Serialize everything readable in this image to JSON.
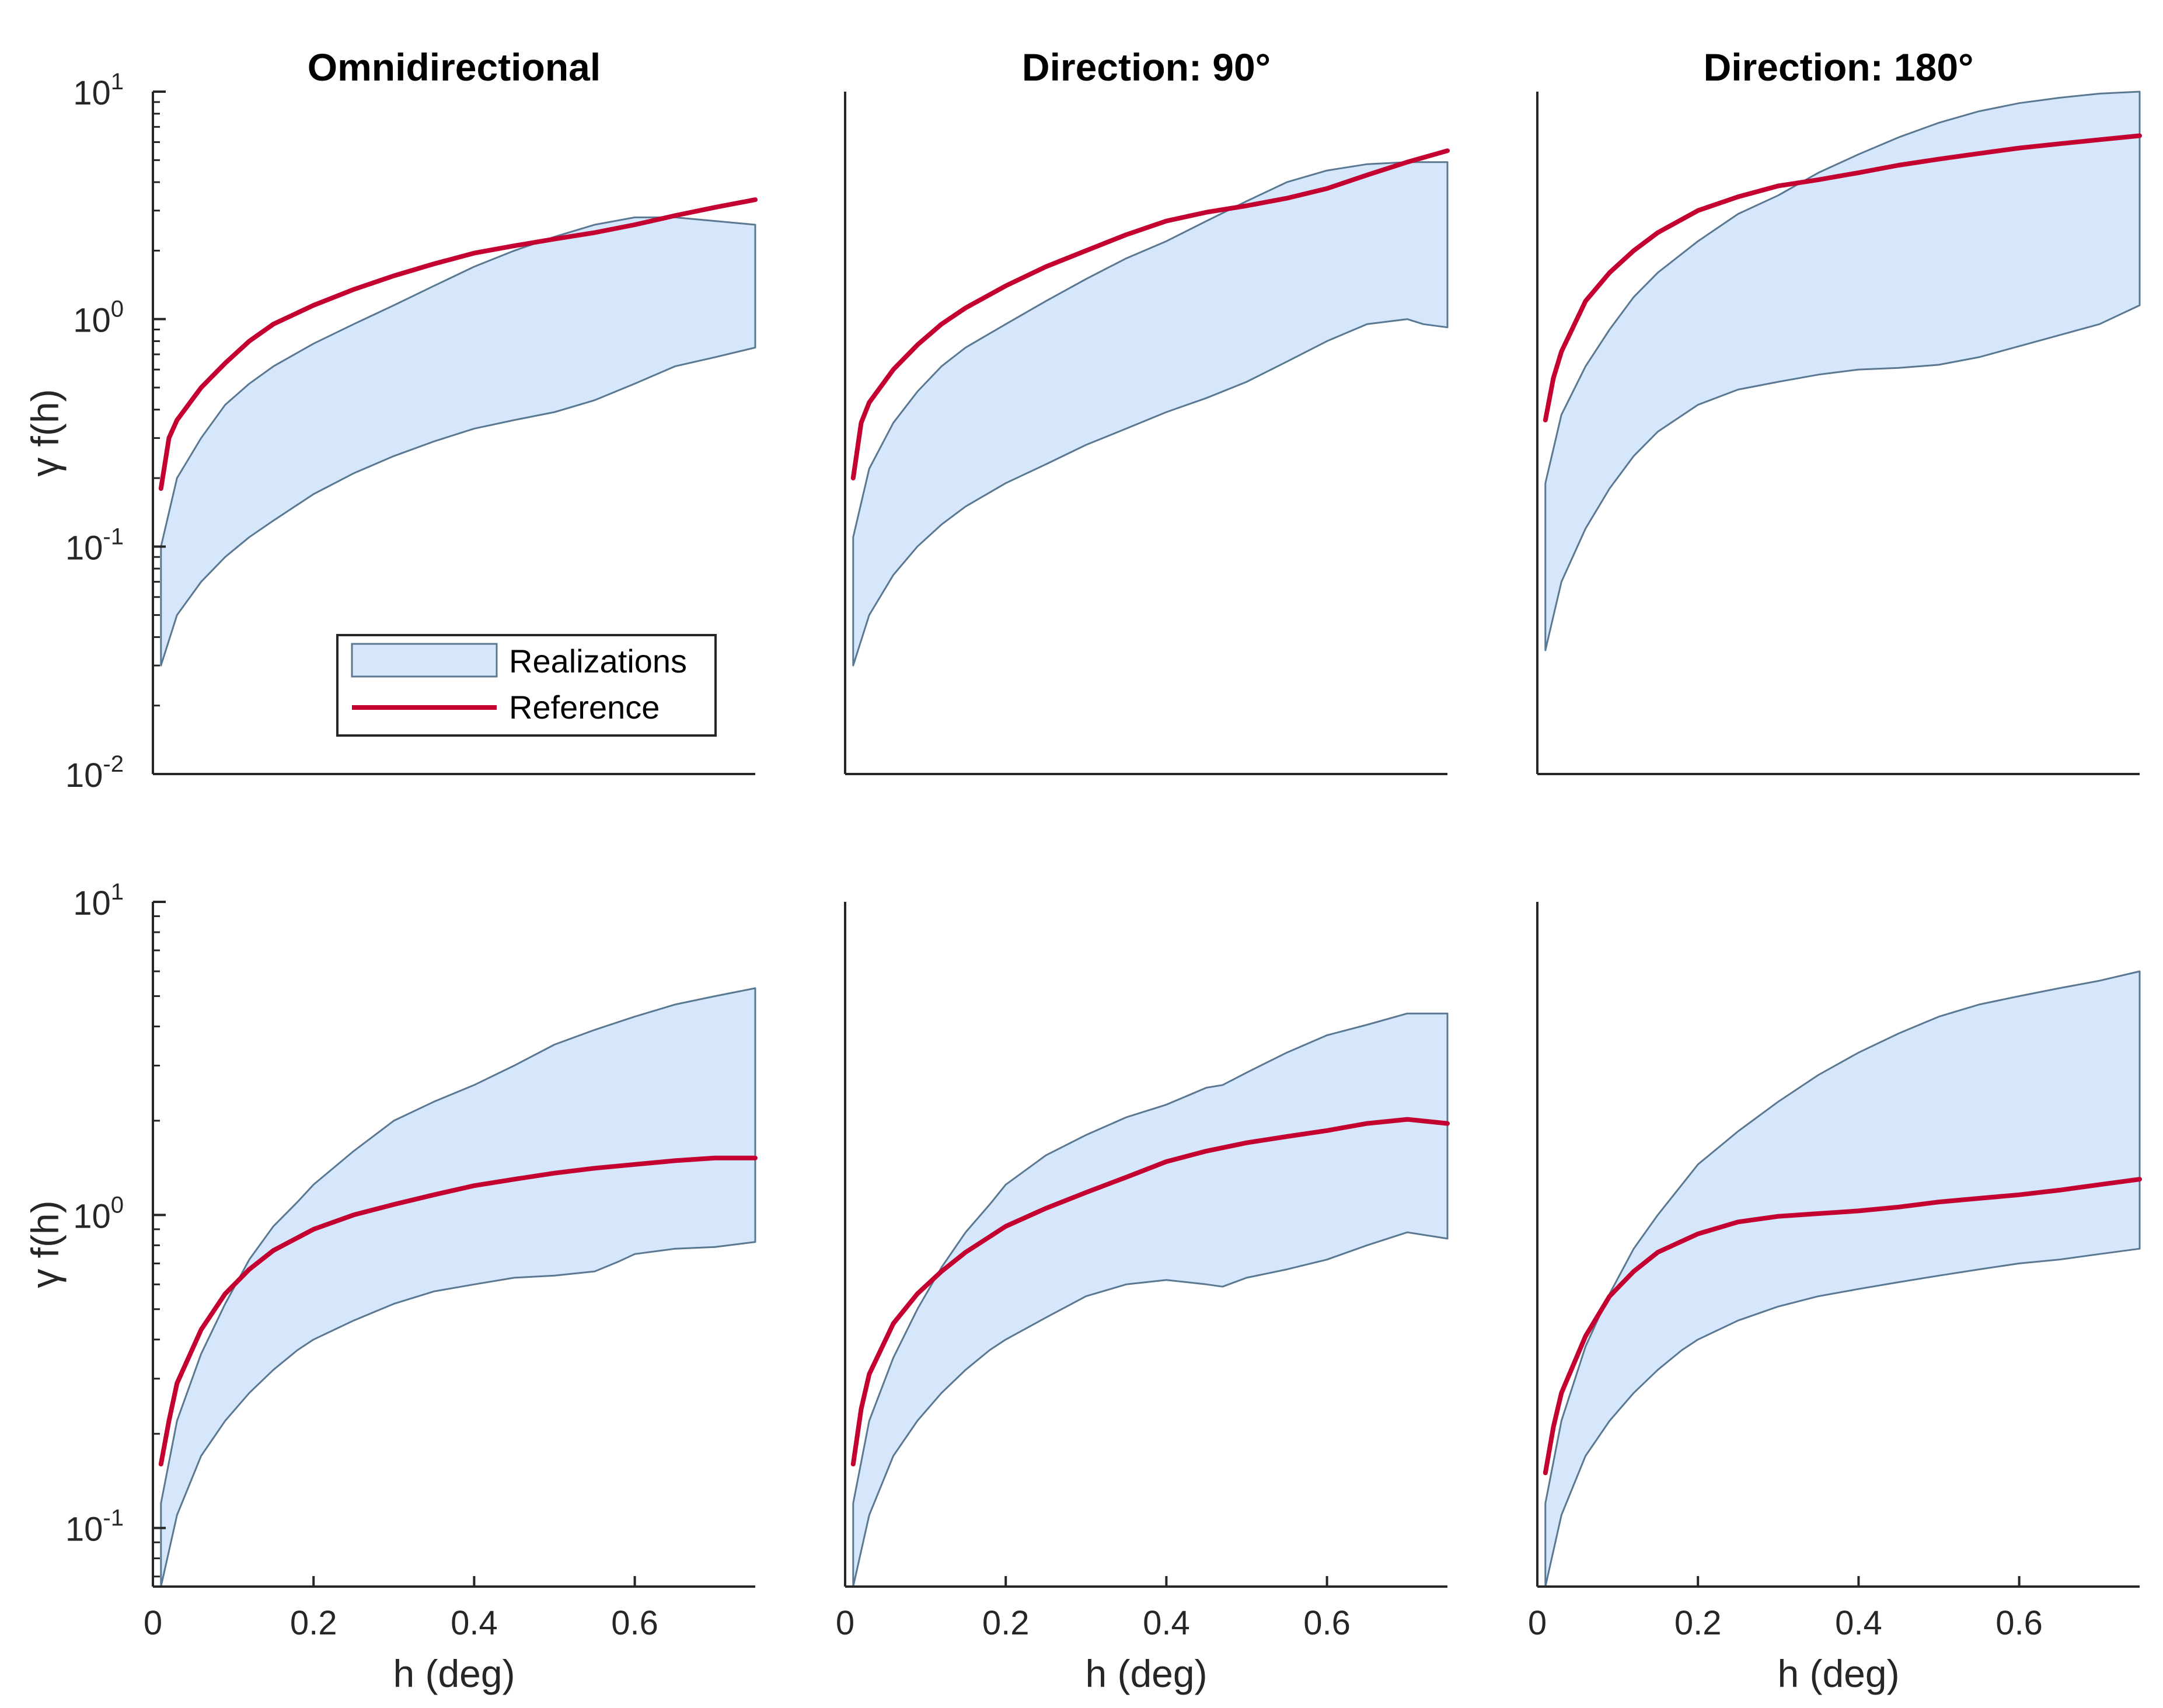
{
  "colors": {
    "band_fill": "#d6e7fb",
    "band_edge": "#5a7891",
    "reference": "#c3002f",
    "axis": "#262626"
  },
  "legend": {
    "items": [
      {
        "label": "Realizations",
        "kind": "band"
      },
      {
        "label": "Reference",
        "kind": "line"
      }
    ]
  },
  "chart_data": [
    {
      "type": "area",
      "row": 0,
      "col": 0,
      "title": "Omnidirectional",
      "xlabel": "",
      "ylabel": "γ f(h)",
      "xlim": [
        0,
        0.75
      ],
      "ylim": [
        0.01,
        10
      ],
      "yscale": "log",
      "xticks": [],
      "yticks": [
        0.01,
        0.1,
        1,
        10
      ],
      "show_legend": true,
      "series": [
        {
          "name": "Realizations (upper)",
          "x": [
            0.01,
            0.03,
            0.06,
            0.09,
            0.12,
            0.15,
            0.2,
            0.25,
            0.3,
            0.35,
            0.4,
            0.45,
            0.5,
            0.55,
            0.6,
            0.65,
            0.7,
            0.75
          ],
          "values": [
            0.1,
            0.2,
            0.3,
            0.42,
            0.52,
            0.62,
            0.78,
            0.95,
            1.15,
            1.4,
            1.7,
            2.0,
            2.3,
            2.6,
            2.8,
            2.8,
            2.7,
            2.6
          ]
        },
        {
          "name": "Realizations (lower)",
          "x": [
            0.01,
            0.03,
            0.06,
            0.09,
            0.12,
            0.15,
            0.2,
            0.25,
            0.3,
            0.35,
            0.4,
            0.45,
            0.5,
            0.55,
            0.6,
            0.65,
            0.7,
            0.75
          ],
          "values": [
            0.03,
            0.05,
            0.07,
            0.09,
            0.11,
            0.13,
            0.17,
            0.21,
            0.25,
            0.29,
            0.33,
            0.36,
            0.39,
            0.44,
            0.52,
            0.62,
            0.68,
            0.75
          ]
        },
        {
          "name": "Reference",
          "x": [
            0.01,
            0.02,
            0.03,
            0.06,
            0.09,
            0.12,
            0.15,
            0.2,
            0.25,
            0.3,
            0.35,
            0.4,
            0.45,
            0.5,
            0.55,
            0.6,
            0.65,
            0.7,
            0.75
          ],
          "values": [
            0.18,
            0.3,
            0.36,
            0.5,
            0.64,
            0.8,
            0.95,
            1.15,
            1.35,
            1.55,
            1.75,
            1.95,
            2.1,
            2.25,
            2.4,
            2.6,
            2.85,
            3.1,
            3.35
          ]
        }
      ]
    },
    {
      "type": "area",
      "row": 0,
      "col": 1,
      "title": "Direction: 90°",
      "xlabel": "",
      "ylabel": "",
      "xlim": [
        0,
        0.75
      ],
      "ylim": [
        0.01,
        10
      ],
      "yscale": "log",
      "xticks": [],
      "yticks": [],
      "show_legend": false,
      "series": [
        {
          "name": "Realizations (upper)",
          "x": [
            0.01,
            0.03,
            0.06,
            0.09,
            0.12,
            0.15,
            0.2,
            0.25,
            0.3,
            0.35,
            0.4,
            0.45,
            0.5,
            0.55,
            0.6,
            0.65,
            0.7,
            0.72,
            0.75
          ],
          "values": [
            0.11,
            0.22,
            0.35,
            0.48,
            0.62,
            0.75,
            0.95,
            1.2,
            1.5,
            1.85,
            2.2,
            2.7,
            3.3,
            4.0,
            4.5,
            4.8,
            4.9,
            4.9,
            4.9
          ]
        },
        {
          "name": "Realizations (lower)",
          "x": [
            0.01,
            0.03,
            0.06,
            0.09,
            0.12,
            0.15,
            0.2,
            0.25,
            0.3,
            0.35,
            0.4,
            0.45,
            0.5,
            0.55,
            0.6,
            0.65,
            0.7,
            0.72,
            0.75
          ],
          "values": [
            0.03,
            0.05,
            0.075,
            0.1,
            0.125,
            0.15,
            0.19,
            0.23,
            0.28,
            0.33,
            0.39,
            0.45,
            0.53,
            0.65,
            0.8,
            0.95,
            1.0,
            0.95,
            0.92
          ]
        },
        {
          "name": "Reference",
          "x": [
            0.01,
            0.02,
            0.03,
            0.06,
            0.09,
            0.12,
            0.15,
            0.2,
            0.25,
            0.3,
            0.35,
            0.4,
            0.45,
            0.5,
            0.55,
            0.6,
            0.65,
            0.7,
            0.75
          ],
          "values": [
            0.2,
            0.35,
            0.43,
            0.6,
            0.77,
            0.95,
            1.12,
            1.4,
            1.7,
            2.0,
            2.35,
            2.7,
            2.95,
            3.15,
            3.4,
            3.75,
            4.3,
            4.9,
            5.5
          ]
        }
      ]
    },
    {
      "type": "area",
      "row": 0,
      "col": 2,
      "title": "Direction: 180°",
      "xlabel": "",
      "ylabel": "",
      "xlim": [
        0,
        0.75
      ],
      "ylim": [
        0.01,
        10
      ],
      "yscale": "log",
      "xticks": [],
      "yticks": [],
      "show_legend": false,
      "series": [
        {
          "name": "Realizations (upper)",
          "x": [
            0.01,
            0.03,
            0.06,
            0.09,
            0.12,
            0.15,
            0.2,
            0.25,
            0.3,
            0.35,
            0.4,
            0.45,
            0.5,
            0.55,
            0.6,
            0.65,
            0.7,
            0.75
          ],
          "values": [
            0.19,
            0.38,
            0.62,
            0.9,
            1.25,
            1.6,
            2.2,
            2.9,
            3.5,
            4.4,
            5.3,
            6.3,
            7.3,
            8.2,
            8.9,
            9.4,
            9.8,
            10.0
          ]
        },
        {
          "name": "Realizations (lower)",
          "x": [
            0.01,
            0.03,
            0.06,
            0.09,
            0.12,
            0.15,
            0.2,
            0.25,
            0.3,
            0.35,
            0.4,
            0.45,
            0.5,
            0.55,
            0.6,
            0.65,
            0.7,
            0.75
          ],
          "values": [
            0.035,
            0.07,
            0.12,
            0.18,
            0.25,
            0.32,
            0.42,
            0.49,
            0.53,
            0.57,
            0.6,
            0.61,
            0.63,
            0.68,
            0.76,
            0.85,
            0.95,
            1.15
          ]
        },
        {
          "name": "Reference",
          "x": [
            0.01,
            0.02,
            0.03,
            0.06,
            0.09,
            0.12,
            0.15,
            0.2,
            0.25,
            0.3,
            0.35,
            0.4,
            0.45,
            0.5,
            0.55,
            0.6,
            0.65,
            0.7,
            0.75
          ],
          "values": [
            0.36,
            0.55,
            0.72,
            1.2,
            1.6,
            2.0,
            2.4,
            3.0,
            3.45,
            3.85,
            4.1,
            4.4,
            4.75,
            5.05,
            5.35,
            5.65,
            5.9,
            6.15,
            6.4
          ]
        }
      ]
    },
    {
      "type": "area",
      "row": 1,
      "col": 0,
      "title": "",
      "xlabel": "h (deg)",
      "ylabel": "γ f(h)",
      "xlim": [
        0,
        0.75
      ],
      "ylim": [
        0.065,
        10
      ],
      "yscale": "log",
      "xticks": [
        0,
        0.2,
        0.4,
        0.6
      ],
      "yticks": [
        0.1,
        1,
        10
      ],
      "show_legend": false,
      "series": [
        {
          "name": "Realizations (upper)",
          "x": [
            0.01,
            0.03,
            0.06,
            0.09,
            0.12,
            0.15,
            0.18,
            0.2,
            0.25,
            0.3,
            0.35,
            0.4,
            0.45,
            0.5,
            0.55,
            0.6,
            0.65,
            0.7,
            0.75
          ],
          "values": [
            0.12,
            0.22,
            0.36,
            0.52,
            0.72,
            0.92,
            1.1,
            1.25,
            1.6,
            2.0,
            2.3,
            2.6,
            3.0,
            3.5,
            3.9,
            4.3,
            4.7,
            5.0,
            5.3
          ]
        },
        {
          "name": "Realizations (lower)",
          "x": [
            0.01,
            0.03,
            0.06,
            0.09,
            0.12,
            0.15,
            0.18,
            0.2,
            0.25,
            0.3,
            0.35,
            0.4,
            0.45,
            0.5,
            0.55,
            0.58,
            0.6,
            0.65,
            0.7,
            0.75
          ],
          "values": [
            0.065,
            0.11,
            0.17,
            0.22,
            0.27,
            0.32,
            0.37,
            0.4,
            0.46,
            0.52,
            0.57,
            0.6,
            0.63,
            0.64,
            0.66,
            0.71,
            0.75,
            0.78,
            0.79,
            0.82
          ]
        },
        {
          "name": "Reference",
          "x": [
            0.01,
            0.02,
            0.03,
            0.06,
            0.09,
            0.12,
            0.15,
            0.2,
            0.25,
            0.3,
            0.35,
            0.4,
            0.45,
            0.5,
            0.55,
            0.6,
            0.65,
            0.7,
            0.75
          ],
          "values": [
            0.16,
            0.22,
            0.29,
            0.43,
            0.56,
            0.67,
            0.77,
            0.9,
            1.0,
            1.08,
            1.16,
            1.24,
            1.3,
            1.36,
            1.41,
            1.45,
            1.49,
            1.52,
            1.52
          ]
        }
      ]
    },
    {
      "type": "area",
      "row": 1,
      "col": 1,
      "title": "",
      "xlabel": "h (deg)",
      "ylabel": "",
      "xlim": [
        0,
        0.75
      ],
      "ylim": [
        0.065,
        10
      ],
      "yscale": "log",
      "xticks": [
        0,
        0.2,
        0.4,
        0.6
      ],
      "yticks": [],
      "show_legend": false,
      "series": [
        {
          "name": "Realizations (upper)",
          "x": [
            0.01,
            0.03,
            0.06,
            0.09,
            0.12,
            0.15,
            0.18,
            0.2,
            0.25,
            0.3,
            0.35,
            0.4,
            0.45,
            0.47,
            0.5,
            0.55,
            0.6,
            0.65,
            0.7,
            0.75
          ],
          "values": [
            0.12,
            0.22,
            0.35,
            0.5,
            0.68,
            0.88,
            1.08,
            1.25,
            1.55,
            1.8,
            2.05,
            2.25,
            2.55,
            2.6,
            2.85,
            3.3,
            3.75,
            4.05,
            4.4,
            4.4
          ]
        },
        {
          "name": "Realizations (lower)",
          "x": [
            0.01,
            0.03,
            0.06,
            0.09,
            0.12,
            0.15,
            0.18,
            0.2,
            0.25,
            0.3,
            0.35,
            0.4,
            0.45,
            0.47,
            0.5,
            0.55,
            0.6,
            0.65,
            0.7,
            0.75
          ],
          "values": [
            0.065,
            0.11,
            0.17,
            0.22,
            0.27,
            0.32,
            0.37,
            0.4,
            0.47,
            0.55,
            0.6,
            0.62,
            0.6,
            0.59,
            0.63,
            0.67,
            0.72,
            0.8,
            0.88,
            0.84
          ]
        },
        {
          "name": "Reference",
          "x": [
            0.01,
            0.02,
            0.03,
            0.06,
            0.09,
            0.12,
            0.15,
            0.2,
            0.25,
            0.3,
            0.35,
            0.4,
            0.45,
            0.5,
            0.55,
            0.6,
            0.65,
            0.7,
            0.75
          ],
          "values": [
            0.16,
            0.24,
            0.31,
            0.45,
            0.56,
            0.66,
            0.76,
            0.92,
            1.05,
            1.18,
            1.32,
            1.48,
            1.6,
            1.7,
            1.78,
            1.86,
            1.96,
            2.02,
            1.96
          ]
        }
      ]
    },
    {
      "type": "area",
      "row": 1,
      "col": 2,
      "title": "",
      "xlabel": "h (deg)",
      "ylabel": "",
      "xlim": [
        0,
        0.75
      ],
      "ylim": [
        0.065,
        10
      ],
      "yscale": "log",
      "xticks": [
        0,
        0.2,
        0.4,
        0.6
      ],
      "yticks": [],
      "show_legend": false,
      "series": [
        {
          "name": "Realizations (upper)",
          "x": [
            0.01,
            0.03,
            0.06,
            0.09,
            0.12,
            0.15,
            0.18,
            0.2,
            0.25,
            0.3,
            0.35,
            0.4,
            0.45,
            0.5,
            0.55,
            0.6,
            0.65,
            0.7,
            0.75
          ],
          "values": [
            0.12,
            0.22,
            0.38,
            0.56,
            0.78,
            1.0,
            1.25,
            1.45,
            1.85,
            2.3,
            2.8,
            3.3,
            3.8,
            4.3,
            4.7,
            5.0,
            5.3,
            5.6,
            6.0
          ]
        },
        {
          "name": "Realizations (lower)",
          "x": [
            0.01,
            0.03,
            0.06,
            0.09,
            0.12,
            0.15,
            0.18,
            0.2,
            0.25,
            0.3,
            0.35,
            0.4,
            0.45,
            0.5,
            0.55,
            0.6,
            0.65,
            0.7,
            0.75
          ],
          "values": [
            0.065,
            0.11,
            0.17,
            0.22,
            0.27,
            0.32,
            0.37,
            0.4,
            0.46,
            0.51,
            0.55,
            0.58,
            0.61,
            0.64,
            0.67,
            0.7,
            0.72,
            0.75,
            0.78
          ]
        },
        {
          "name": "Reference",
          "x": [
            0.01,
            0.02,
            0.03,
            0.06,
            0.09,
            0.12,
            0.15,
            0.2,
            0.25,
            0.3,
            0.35,
            0.4,
            0.45,
            0.5,
            0.55,
            0.6,
            0.65,
            0.7,
            0.75
          ],
          "values": [
            0.15,
            0.21,
            0.27,
            0.41,
            0.55,
            0.66,
            0.76,
            0.87,
            0.95,
            0.99,
            1.01,
            1.03,
            1.06,
            1.1,
            1.13,
            1.16,
            1.2,
            1.25,
            1.3
          ]
        }
      ]
    }
  ]
}
